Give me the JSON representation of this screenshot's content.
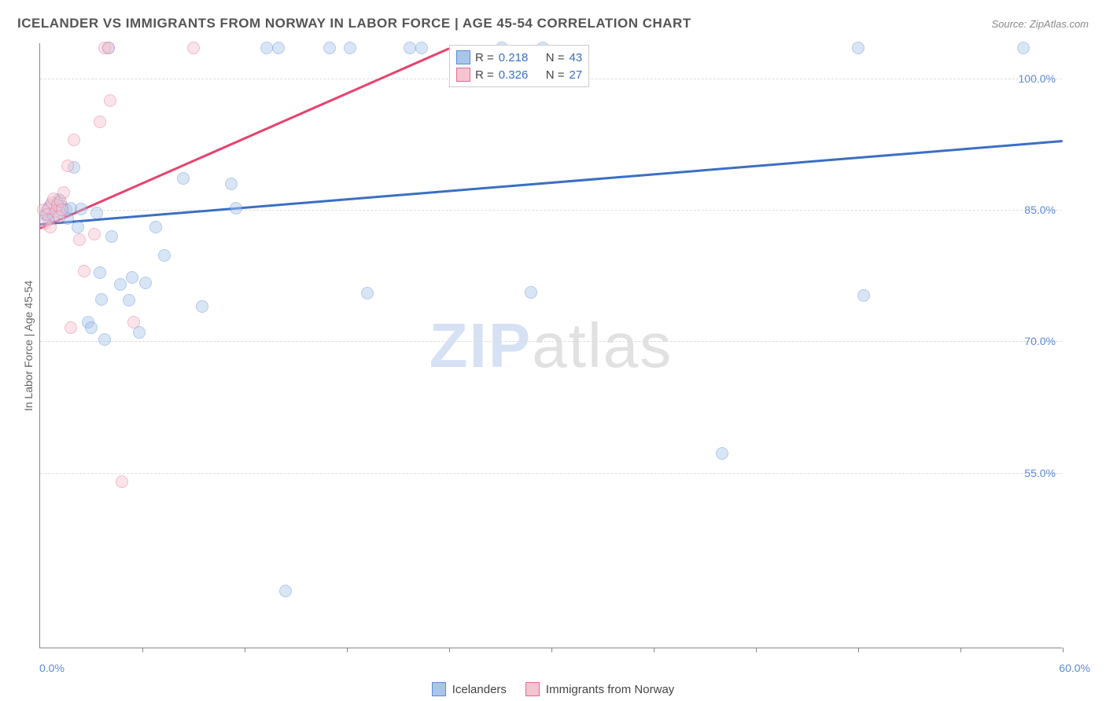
{
  "title": "ICELANDER VS IMMIGRANTS FROM NORWAY IN LABOR FORCE | AGE 45-54 CORRELATION CHART",
  "source_label": "Source: ZipAtlas.com",
  "y_axis_label": "In Labor Force | Age 45-54",
  "watermark": {
    "part1": "ZIP",
    "part2": "atlas"
  },
  "chart": {
    "type": "scatter",
    "background_color": "#ffffff",
    "border_color": "#888888",
    "grid_color": "#dddddd",
    "xlim": [
      0,
      60
    ],
    "ylim": [
      35,
      104
    ],
    "marker_size": 16,
    "marker_opacity": 0.45,
    "yticks": [
      {
        "value": 55,
        "label": "55.0%"
      },
      {
        "value": 70,
        "label": "70.0%"
      },
      {
        "value": 85,
        "label": "85.0%"
      },
      {
        "value": 100,
        "label": "100.0%"
      }
    ],
    "xticks": [
      6,
      12,
      18,
      24,
      30,
      36,
      42,
      48,
      54,
      60
    ],
    "xtick_min_label": "0.0%",
    "xtick_max_label": "60.0%",
    "series": [
      {
        "key": "icelanders",
        "label": "Icelanders",
        "fill_color": "#a9c6ea",
        "stroke_color": "#5b8bd4",
        "trend_color": "#3b6fc4",
        "trend": {
          "x1": 0,
          "y1": 83.5,
          "x2": 60,
          "y2": 93.0
        },
        "stats": {
          "r": "0.218",
          "n": "43"
        },
        "points": [
          [
            0.3,
            84.5
          ],
          [
            0.4,
            85.0
          ],
          [
            0.5,
            84.0
          ],
          [
            0.6,
            85.5
          ],
          [
            0.8,
            84.2
          ],
          [
            1.0,
            85.8
          ],
          [
            1.1,
            86.2
          ],
          [
            1.2,
            84.6
          ],
          [
            1.3,
            85.4
          ],
          [
            1.5,
            85.0
          ],
          [
            1.6,
            84.0
          ],
          [
            1.8,
            85.2
          ],
          [
            2.0,
            89.8
          ],
          [
            2.2,
            83.0
          ],
          [
            2.4,
            85.1
          ],
          [
            2.8,
            72.2
          ],
          [
            3.0,
            71.6
          ],
          [
            3.3,
            84.6
          ],
          [
            3.5,
            77.8
          ],
          [
            3.6,
            74.8
          ],
          [
            3.8,
            70.2
          ],
          [
            4.0,
            103.5
          ],
          [
            4.2,
            82.0
          ],
          [
            4.7,
            76.5
          ],
          [
            5.2,
            74.7
          ],
          [
            5.4,
            77.3
          ],
          [
            5.8,
            71.0
          ],
          [
            6.2,
            76.7
          ],
          [
            6.8,
            83.0
          ],
          [
            7.3,
            79.8
          ],
          [
            8.4,
            88.6
          ],
          [
            9.5,
            74.0
          ],
          [
            11.2,
            88.0
          ],
          [
            11.5,
            85.2
          ],
          [
            13.3,
            103.5
          ],
          [
            14.0,
            103.5
          ],
          [
            14.4,
            41.5
          ],
          [
            17.0,
            103.5
          ],
          [
            18.2,
            103.5
          ],
          [
            19.2,
            75.5
          ],
          [
            21.7,
            103.5
          ],
          [
            22.4,
            103.5
          ],
          [
            27.1,
            103.5
          ],
          [
            28.8,
            75.6
          ],
          [
            29.5,
            103.5
          ],
          [
            40.0,
            57.2
          ],
          [
            48.0,
            103.5
          ],
          [
            48.3,
            75.2
          ],
          [
            57.7,
            103.5
          ]
        ]
      },
      {
        "key": "norway",
        "label": "Immigrants from Norway",
        "fill_color": "#f5c4d1",
        "stroke_color": "#e66a8e",
        "trend_color": "#e6436f",
        "trend": {
          "x1": 0,
          "y1": 83.0,
          "x2": 24,
          "y2": 103.5
        },
        "stats": {
          "r": "0.326",
          "n": "27"
        },
        "points": [
          [
            0.2,
            85.0
          ],
          [
            0.3,
            83.5
          ],
          [
            0.4,
            84.5
          ],
          [
            0.5,
            85.2
          ],
          [
            0.6,
            83.0
          ],
          [
            0.7,
            85.8
          ],
          [
            0.8,
            86.3
          ],
          [
            0.9,
            84.8
          ],
          [
            1.0,
            85.5
          ],
          [
            1.1,
            84.2
          ],
          [
            1.2,
            86.0
          ],
          [
            1.3,
            85.0
          ],
          [
            1.4,
            87.0
          ],
          [
            1.6,
            90.0
          ],
          [
            1.8,
            71.6
          ],
          [
            2.0,
            93.0
          ],
          [
            2.3,
            81.6
          ],
          [
            2.6,
            78.0
          ],
          [
            3.2,
            82.2
          ],
          [
            3.5,
            95.0
          ],
          [
            3.8,
            103.5
          ],
          [
            4.0,
            103.5
          ],
          [
            4.1,
            97.5
          ],
          [
            4.8,
            54.0
          ],
          [
            5.5,
            72.2
          ],
          [
            9.0,
            103.5
          ]
        ]
      }
    ]
  },
  "stats_box": {
    "r_label": "R =",
    "n_label": "N ="
  },
  "legend_swatch": {
    "blue_fill": "#a9c6ea",
    "blue_stroke": "#5b8bd4",
    "pink_fill": "#f5c4d1",
    "pink_stroke": "#e66a8e"
  }
}
